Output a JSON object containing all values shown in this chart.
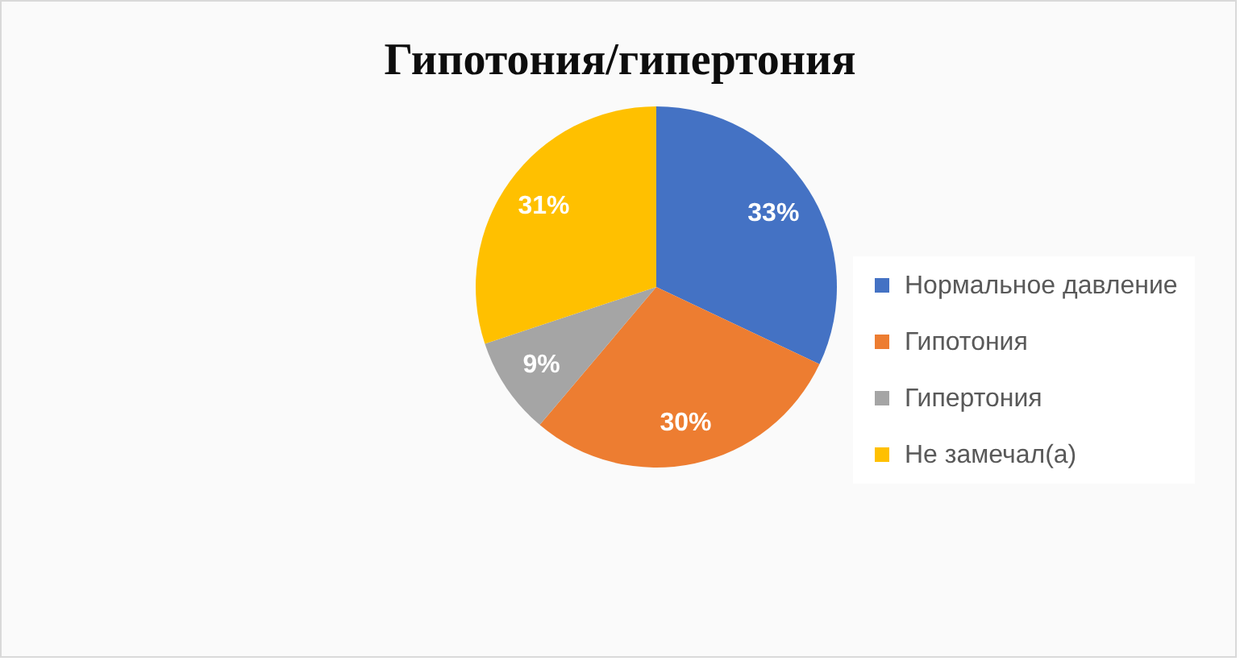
{
  "chart_data": {
    "type": "pie",
    "title": "Гипотония/гипертония",
    "categories": [
      "Нормальное давление",
      "Гипотония",
      "Гипертония",
      "Не замечал(а)"
    ],
    "values": [
      33,
      30,
      9,
      31
    ],
    "colors": [
      "#4472c4",
      "#ed7d31",
      "#a5a5a5",
      "#ffc000"
    ],
    "value_labels": [
      "33%",
      "30%",
      "9%",
      "31%"
    ],
    "legend": "right"
  }
}
